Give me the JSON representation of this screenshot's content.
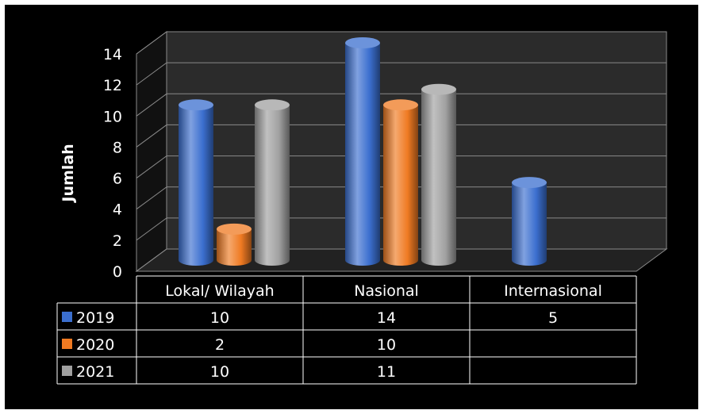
{
  "chart_data": {
    "type": "bar",
    "categories": [
      "Lokal/ Wilayah",
      "Nasional",
      "Internasional"
    ],
    "series": [
      {
        "name": "2019",
        "values": [
          10,
          14,
          5
        ],
        "color": "#3b6fcf"
      },
      {
        "name": "2020",
        "values": [
          2,
          10,
          null
        ],
        "color": "#ef7a22"
      },
      {
        "name": "2021",
        "values": [
          10,
          11,
          null
        ],
        "color": "#a0a0a0"
      }
    ],
    "ylabel": "Jumlah",
    "ylim": [
      0,
      14
    ],
    "yticks": [
      0,
      2,
      4,
      6,
      8,
      10,
      12,
      14
    ],
    "grid": true,
    "legend": "data-table",
    "data_table": true,
    "table_rows": [
      [
        "10",
        "14",
        "5"
      ],
      [
        "2",
        "10",
        ""
      ],
      [
        "10",
        "11",
        ""
      ]
    ]
  }
}
